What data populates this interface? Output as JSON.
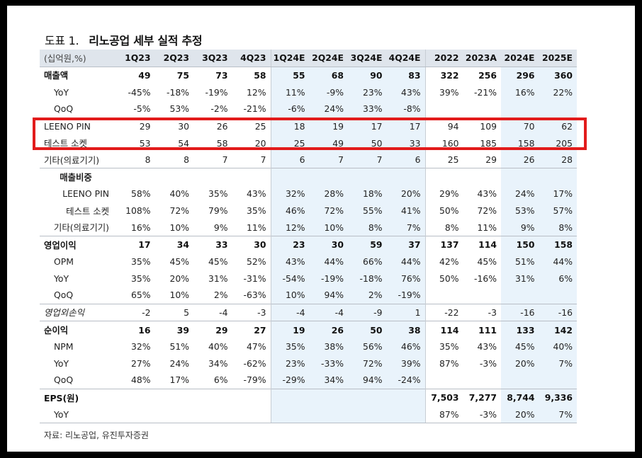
{
  "title": {
    "prefix": "도표 1.",
    "main": "리노공업 세부 실적 추정"
  },
  "header": [
    "(십억원,%)",
    "1Q23",
    "2Q23",
    "3Q23",
    "4Q23",
    "1Q24E",
    "2Q24E",
    "3Q24E",
    "4Q24E",
    "2022",
    "2023A",
    "2024E",
    "2025E"
  ],
  "rows": [
    {
      "label": "매출액",
      "style": "bold",
      "top": true,
      "values": [
        "49",
        "75",
        "73",
        "58",
        "55",
        "68",
        "90",
        "83",
        "322",
        "256",
        "296",
        "360"
      ]
    },
    {
      "label": "YoY",
      "style": "ind",
      "values": [
        "-45%",
        "-18%",
        "-19%",
        "12%",
        "11%",
        "-9%",
        "23%",
        "43%",
        "39%",
        "-21%",
        "16%",
        "22%"
      ]
    },
    {
      "label": "QoQ",
      "style": "ind",
      "values": [
        "-5%",
        "53%",
        "-2%",
        "-21%",
        "-6%",
        "24%",
        "33%",
        "-8%",
        "",
        "",
        "",
        ""
      ]
    },
    {
      "label": "LEENO PIN",
      "style": "sub",
      "top": true,
      "values": [
        "29",
        "30",
        "26",
        "25",
        "18",
        "19",
        "17",
        "17",
        "94",
        "109",
        "70",
        "62"
      ]
    },
    {
      "label": "테스트 소켓",
      "style": "sub",
      "values": [
        "53",
        "54",
        "58",
        "20",
        "25",
        "49",
        "50",
        "33",
        "160",
        "185",
        "158",
        "205"
      ]
    },
    {
      "label": "기타(의료기기)",
      "style": "sub",
      "values": [
        "8",
        "8",
        "7",
        "7",
        "6",
        "7",
        "7",
        "6",
        "25",
        "29",
        "26",
        "28"
      ]
    },
    {
      "label": "매출비중",
      "style": "center-bold",
      "top": true,
      "values": [
        "",
        "",
        "",
        "",
        "",
        "",
        "",
        "",
        "",
        "",
        "",
        ""
      ]
    },
    {
      "label": "LEENO PIN",
      "style": "rt",
      "values": [
        "58%",
        "40%",
        "35%",
        "43%",
        "32%",
        "28%",
        "18%",
        "20%",
        "29%",
        "43%",
        "24%",
        "17%"
      ]
    },
    {
      "label": "테스트 소켓",
      "style": "rt",
      "values": [
        "108%",
        "72%",
        "79%",
        "35%",
        "46%",
        "72%",
        "55%",
        "41%",
        "50%",
        "72%",
        "53%",
        "57%"
      ]
    },
    {
      "label": "기타(의료기기)",
      "style": "rt",
      "values": [
        "16%",
        "10%",
        "9%",
        "11%",
        "12%",
        "10%",
        "8%",
        "7%",
        "8%",
        "11%",
        "9%",
        "8%"
      ]
    },
    {
      "label": "영업이익",
      "style": "bold",
      "top": true,
      "values": [
        "17",
        "34",
        "33",
        "30",
        "23",
        "30",
        "59",
        "37",
        "137",
        "114",
        "150",
        "158"
      ]
    },
    {
      "label": "OPM",
      "style": "ind",
      "values": [
        "35%",
        "45%",
        "45%",
        "52%",
        "43%",
        "44%",
        "66%",
        "44%",
        "42%",
        "45%",
        "51%",
        "44%"
      ]
    },
    {
      "label": "YoY",
      "style": "ind",
      "values": [
        "35%",
        "20%",
        "31%",
        "-31%",
        "-54%",
        "-19%",
        "-18%",
        "76%",
        "50%",
        "-16%",
        "31%",
        "6%"
      ]
    },
    {
      "label": "QoQ",
      "style": "ind",
      "values": [
        "65%",
        "10%",
        "2%",
        "-63%",
        "10%",
        "94%",
        "2%",
        "-19%",
        "",
        "",
        "",
        ""
      ]
    },
    {
      "label": "영업외손익",
      "style": "ital",
      "top": true,
      "values": [
        "-2",
        "5",
        "-4",
        "-3",
        "-4",
        "-4",
        "-9",
        "1",
        "-22",
        "-3",
        "-16",
        "-16"
      ]
    },
    {
      "label": "순이익",
      "style": "bold",
      "top": true,
      "values": [
        "16",
        "39",
        "29",
        "27",
        "19",
        "26",
        "50",
        "38",
        "114",
        "111",
        "133",
        "142"
      ]
    },
    {
      "label": "NPM",
      "style": "ind",
      "values": [
        "32%",
        "51%",
        "40%",
        "47%",
        "35%",
        "38%",
        "56%",
        "46%",
        "35%",
        "43%",
        "45%",
        "40%"
      ]
    },
    {
      "label": "YoY",
      "style": "ind",
      "values": [
        "27%",
        "24%",
        "34%",
        "-62%",
        "23%",
        "-33%",
        "72%",
        "39%",
        "87%",
        "-3%",
        "20%",
        "7%"
      ]
    },
    {
      "label": "QoQ",
      "style": "ind",
      "values": [
        "48%",
        "17%",
        "6%",
        "-79%",
        "-29%",
        "34%",
        "94%",
        "-24%",
        "",
        "",
        "",
        ""
      ]
    },
    {
      "label": "EPS(원)",
      "style": "bold",
      "top": true,
      "values": [
        "",
        "",
        "",
        "",
        "",
        "",
        "",
        "",
        "7,503",
        "7,277",
        "8,744",
        "9,336"
      ]
    },
    {
      "label": "YoY",
      "style": "ind",
      "last": true,
      "values": [
        "",
        "",
        "",
        "",
        "",
        "",
        "",
        "",
        "87%",
        "-3%",
        "20%",
        "7%"
      ]
    }
  ],
  "source": "자료: 리노공업, 유진투자증권",
  "highlight": {
    "color": "#e21b1b",
    "rows": [
      "LEENO PIN",
      "테스트 소켓"
    ]
  }
}
